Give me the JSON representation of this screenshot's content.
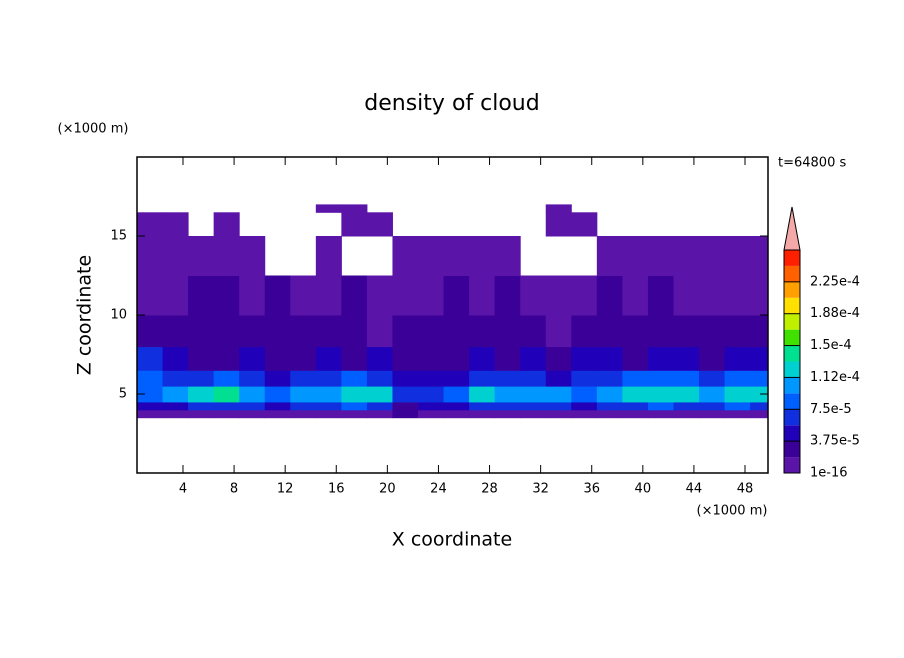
{
  "chart_data": {
    "type": "contour",
    "title": "density of cloud",
    "x_label": "X coordinate",
    "y_label": "Z coordinate",
    "x_unit": "(×1000 m)",
    "y_unit": "(×1000 m)",
    "annotation": "t=64800 s",
    "xlim": [
      0.4,
      49.8
    ],
    "ylim": [
      0,
      20
    ],
    "xticks": [
      4,
      8,
      12,
      16,
      20,
      24,
      28,
      32,
      36,
      40,
      44,
      48
    ],
    "yticks": [
      5,
      10,
      15
    ],
    "x_edges": [
      0.4,
      2.4,
      4.4,
      6.4,
      8.4,
      10.4,
      12.4,
      14.4,
      16.4,
      18.4,
      20.4,
      22.4,
      24.4,
      26.4,
      28.4,
      30.4,
      32.4,
      34.4,
      36.4,
      38.4,
      40.4,
      42.4,
      44.4,
      46.4,
      48.4,
      50.4
    ],
    "z_edges": [
      3.5,
      4,
      4.5,
      5.5,
      6.5,
      8,
      10,
      12.5,
      15,
      16.5,
      17
    ],
    "values": [
      [
        1e-05,
        1e-05,
        1e-05,
        1e-05,
        1e-05,
        1e-05,
        1e-05,
        1e-05,
        1e-05,
        1e-05,
        2e-05,
        1e-05,
        1e-05,
        1e-05,
        1e-05,
        1e-05,
        1e-05,
        1e-05,
        1e-05,
        1e-05,
        1e-05,
        1e-05,
        1e-05,
        1e-05,
        1e-05
      ],
      [
        4e-05,
        5e-05,
        6e-05,
        7e-05,
        6e-05,
        5e-05,
        6e-05,
        7e-05,
        8e-05,
        7e-05,
        3e-05,
        4e-05,
        5e-05,
        7e-05,
        6e-05,
        6e-05,
        7e-05,
        5e-05,
        6e-05,
        7e-05,
        8e-05,
        7e-05,
        6e-05,
        8e-05,
        7e-05
      ],
      [
        9e-05,
        0.0001,
        0.00012,
        0.00014,
        0.00011,
        9e-05,
        0.0001,
        0.00011,
        0.00012,
        0.00013,
        6e-05,
        7e-05,
        8e-05,
        0.00012,
        0.00011,
        0.0001,
        0.00011,
        9e-05,
        0.0001,
        0.00012,
        0.00013,
        0.00012,
        0.00011,
        0.00013,
        0.00012
      ],
      [
        8e-05,
        6e-05,
        7e-05,
        9e-05,
        6e-05,
        5e-05,
        6e-05,
        7e-05,
        8e-05,
        7e-05,
        4e-05,
        5e-05,
        5e-05,
        6e-05,
        7e-05,
        6e-05,
        5e-05,
        6e-05,
        7e-05,
        8e-05,
        9e-05,
        8e-05,
        7e-05,
        9e-05,
        8e-05
      ],
      [
        6e-05,
        4e-05,
        3e-05,
        3e-05,
        4e-05,
        3e-05,
        3e-05,
        4e-05,
        3e-05,
        4e-05,
        3e-05,
        3e-05,
        3e-05,
        4e-05,
        3e-05,
        4e-05,
        3e-05,
        4e-05,
        5e-05,
        3e-05,
        4e-05,
        4e-05,
        3e-05,
        4e-05,
        5e-05
      ],
      [
        3e-05,
        2e-05,
        2e-05,
        3e-05,
        2e-05,
        2e-05,
        3e-05,
        2e-05,
        2e-05,
        1e-05,
        2e-05,
        3e-05,
        2e-05,
        2e-05,
        3e-05,
        2e-05,
        1e-05,
        2e-05,
        2e-05,
        3e-05,
        2e-05,
        2e-05,
        3e-05,
        2e-05,
        3e-05
      ],
      [
        1e-05,
        1e-05,
        2e-05,
        2e-05,
        1e-05,
        2e-05,
        1e-05,
        1e-05,
        2e-05,
        1e-05,
        1e-05,
        1e-05,
        2e-05,
        1e-05,
        2e-05,
        1e-05,
        1e-05,
        1e-05,
        2e-05,
        1e-05,
        2e-05,
        1e-05,
        1e-05,
        1e-05,
        1e-05
      ],
      [
        1e-05,
        1e-05,
        1e-05,
        1e-05,
        1e-05,
        null,
        null,
        1e-05,
        null,
        null,
        1e-05,
        1e-05,
        1e-05,
        1e-05,
        1e-05,
        null,
        null,
        null,
        1e-05,
        1e-05,
        1e-05,
        1e-05,
        1e-05,
        1e-05,
        1e-05
      ],
      [
        1e-05,
        1e-05,
        null,
        1e-05,
        null,
        null,
        null,
        null,
        1e-05,
        1e-05,
        null,
        null,
        null,
        null,
        null,
        null,
        1e-05,
        1e-05,
        null,
        null,
        null,
        null,
        null,
        null,
        null
      ],
      [
        null,
        null,
        null,
        null,
        null,
        null,
        null,
        1e-05,
        1e-05,
        null,
        null,
        null,
        null,
        null,
        null,
        null,
        1e-05,
        null,
        null,
        null,
        null,
        null,
        null,
        null,
        null
      ]
    ],
    "clim": [
      0,
      0.0002625
    ],
    "band_step": 1.875e-05,
    "colors": [
      "#5a14a8",
      "#3a0098",
      "#2000b8",
      "#1030e0",
      "#0060ff",
      "#0098ff",
      "#00d0d0",
      "#00e090",
      "#40e000",
      "#c0f000",
      "#ffe000",
      "#ffa000",
      "#ff6000",
      "#ff2000"
    ],
    "extend_color": "#f4a8a8",
    "colorbar_ticks": [
      {
        "value": 1e-16,
        "label": "1e-16"
      },
      {
        "value": 3.75e-05,
        "label": "3.75e-5"
      },
      {
        "value": 7.5e-05,
        "label": "7.5e-5"
      },
      {
        "value": 0.0001125,
        "label": "1.12e-4"
      },
      {
        "value": 0.00015,
        "label": "1.5e-4"
      },
      {
        "value": 0.0001875,
        "label": "1.88e-4"
      },
      {
        "value": 0.000225,
        "label": "2.25e-4"
      }
    ]
  }
}
